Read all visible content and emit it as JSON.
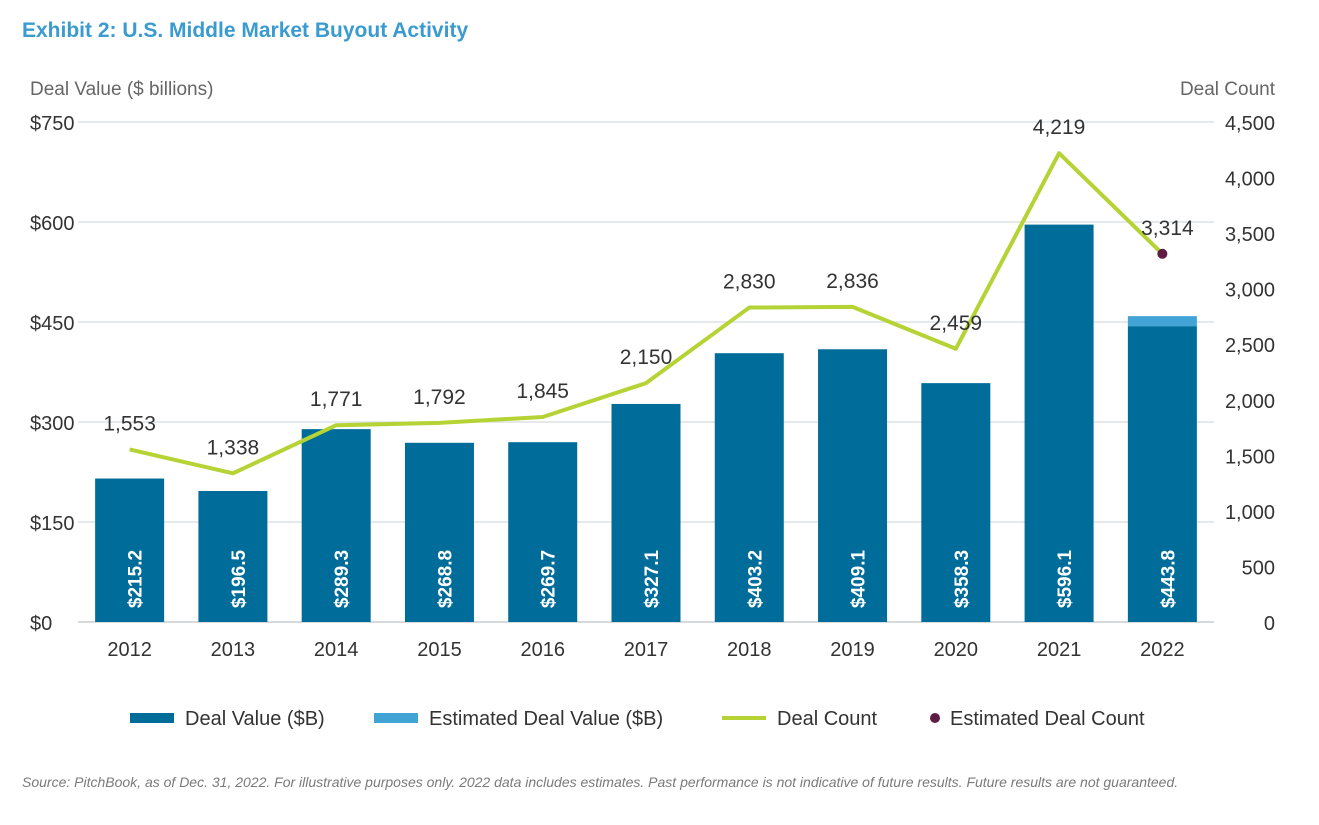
{
  "title": "Exhibit 2: U.S. Middle Market Buyout Activity",
  "source": "Source: PitchBook, as of Dec. 31, 2022. For illustrative purposes only. 2022 data includes estimates. Past performance is not indicative of future results. Future results are not guaranteed.",
  "chart_data": {
    "type": "bar",
    "title": "Exhibit 2: U.S. Middle Market Buyout Activity",
    "ylabel": "Deal Value ($ billions)",
    "y2label": "Deal Count",
    "ylim": [
      0,
      750
    ],
    "y2lim": [
      0,
      4500
    ],
    "yticks": [
      "$0",
      "$150",
      "$300",
      "$450",
      "$600",
      "$750"
    ],
    "y2ticks": [
      "0",
      "500",
      "1,000",
      "1,500",
      "2,000",
      "2,500",
      "3,000",
      "3,500",
      "4,000",
      "4,500"
    ],
    "grid": true,
    "legend_placement": "bottom",
    "categories": [
      "2012",
      "2013",
      "2014",
      "2015",
      "2016",
      "2017",
      "2018",
      "2019",
      "2020",
      "2021",
      "2022"
    ],
    "series": [
      {
        "name": "Deal Value ($B)",
        "kind": "bar",
        "color": "#006c9a",
        "values": [
          215.2,
          196.5,
          289.3,
          268.8,
          269.7,
          327.1,
          403.2,
          409.1,
          358.3,
          596.1,
          443.8
        ],
        "labels": [
          "$215.2",
          "$196.5",
          "$289.3",
          "$268.8",
          "$269.7",
          "$327.1",
          "$403.2",
          "$409.1",
          "$358.3",
          "$596.1",
          "$443.8"
        ]
      },
      {
        "name": "Estimated Deal Value ($B)",
        "kind": "bar-stacked",
        "color": "#41a4d4",
        "values": [
          null,
          null,
          null,
          null,
          null,
          null,
          null,
          null,
          null,
          null,
          15
        ]
      },
      {
        "name": "Deal Count",
        "kind": "line",
        "axis": "right",
        "color": "#b5d334",
        "values": [
          1553,
          1338,
          1771,
          1792,
          1845,
          2150,
          2830,
          2836,
          2459,
          4219,
          3314
        ],
        "labels": [
          "1,553",
          "1,338",
          "1,771",
          "1,792",
          "1,845",
          "2,150",
          "2,830",
          "2,836",
          "2,459",
          "4,219",
          "3,314"
        ]
      },
      {
        "name": "Estimated Deal Count",
        "kind": "point",
        "axis": "right",
        "color": "#5e1c45",
        "values": [
          null,
          null,
          null,
          null,
          null,
          null,
          null,
          null,
          null,
          null,
          3314
        ]
      }
    ]
  }
}
